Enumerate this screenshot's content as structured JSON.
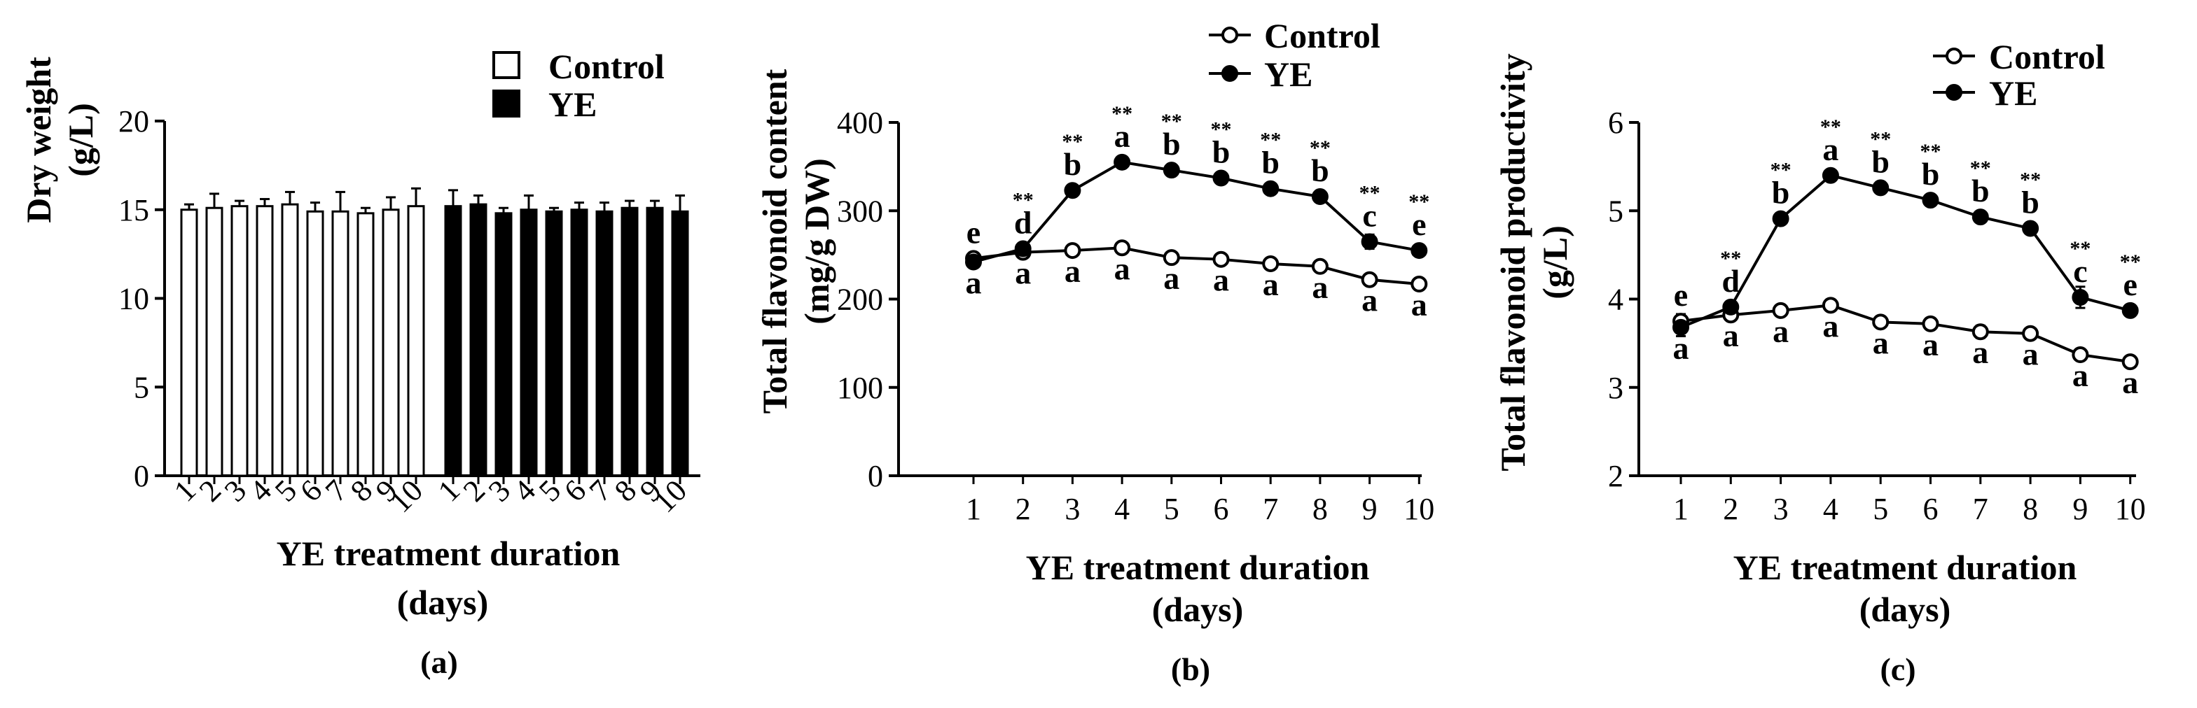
{
  "chart_data": [
    {
      "type": "bar",
      "panel_label": "(a)",
      "xlabel": "YE treatment duration",
      "xlabel_line2": "(days)",
      "ylabel": "Dry weight",
      "ylabel_line2": "(g/L)",
      "ylim": [
        0,
        20
      ],
      "yticks": [
        "0",
        "5",
        "10",
        "15",
        "20"
      ],
      "categories": [
        "1",
        "2",
        "3",
        "4",
        "5",
        "6",
        "7",
        "8",
        "9",
        "10"
      ],
      "legend_position": "top-right",
      "series": [
        {
          "name": "Control",
          "color": "#ffffff",
          "values": [
            15.0,
            15.1,
            15.2,
            15.2,
            15.3,
            14.9,
            14.9,
            14.8,
            15.0,
            15.2
          ],
          "errors": [
            0.3,
            0.8,
            0.3,
            0.4,
            0.7,
            0.5,
            1.1,
            0.3,
            0.7,
            1.0
          ]
        },
        {
          "name": "YE",
          "color": "#000000",
          "values": [
            15.2,
            15.3,
            14.8,
            15.0,
            14.9,
            15.0,
            14.9,
            15.1,
            15.1,
            14.9
          ],
          "errors": [
            0.9,
            0.5,
            0.3,
            0.8,
            0.2,
            0.4,
            0.5,
            0.4,
            0.4,
            0.9
          ]
        }
      ]
    },
    {
      "type": "line",
      "panel_label": "(b)",
      "xlabel": "YE treatment duration",
      "xlabel_line2": "(days)",
      "ylabel": "Total flavonoid content",
      "ylabel_line2": "(mg/g DW)",
      "ylim": [
        0,
        400
      ],
      "yticks": [
        "0",
        "100",
        "200",
        "300",
        "400"
      ],
      "x": [
        1,
        2,
        3,
        4,
        5,
        6,
        7,
        8,
        9,
        10
      ],
      "legend_position": "top",
      "series": [
        {
          "name": "Control",
          "marker": "open-circle",
          "values": [
            246,
            253,
            255,
            258,
            247,
            245,
            240,
            237,
            222,
            217
          ],
          "errors": [
            3,
            4,
            3,
            3,
            3,
            3,
            4,
            3,
            3,
            3
          ],
          "letters": [
            "a",
            "a",
            "a",
            "a",
            "a",
            "a",
            "a",
            "a",
            "a",
            "a"
          ]
        },
        {
          "name": "YE",
          "marker": "filled-circle",
          "values": [
            242,
            257,
            323,
            355,
            346,
            337,
            325,
            316,
            265,
            255
          ],
          "errors": [
            4,
            5,
            4,
            3,
            3,
            3,
            3,
            4,
            8,
            4
          ],
          "letters": [
            "e",
            "d",
            "b",
            "a",
            "b",
            "b",
            "b",
            "b",
            "c",
            "e"
          ],
          "significance": [
            "",
            "**",
            "**",
            "**",
            "**",
            "**",
            "**",
            "**",
            "**",
            "**"
          ]
        }
      ]
    },
    {
      "type": "line",
      "panel_label": "(c)",
      "xlabel": "YE treatment duration",
      "xlabel_line2": "(days)",
      "ylabel": "Total flavonoid productivity",
      "ylabel_line2": "(g/L)",
      "ylim": [
        2,
        6
      ],
      "yticks": [
        "2",
        "3",
        "4",
        "5",
        "6"
      ],
      "x": [
        1,
        2,
        3,
        4,
        5,
        6,
        7,
        8,
        9,
        10
      ],
      "legend_position": "top",
      "series": [
        {
          "name": "Control",
          "marker": "open-circle",
          "values": [
            3.75,
            3.82,
            3.87,
            3.93,
            3.74,
            3.72,
            3.63,
            3.61,
            3.37,
            3.29
          ],
          "errors": [
            0.08,
            0.05,
            0.05,
            0.05,
            0.04,
            0.04,
            0.07,
            0.04,
            0.04,
            0.04
          ],
          "letters": [
            "a",
            "a",
            "a",
            "a",
            "a",
            "a",
            "a",
            "a",
            "a",
            "a"
          ]
        },
        {
          "name": "YE",
          "marker": "filled-circle",
          "values": [
            3.68,
            3.91,
            4.91,
            5.4,
            5.26,
            5.12,
            4.93,
            4.8,
            4.02,
            3.87
          ],
          "errors": [
            0.1,
            0.06,
            0.05,
            0.04,
            0.04,
            0.04,
            0.04,
            0.05,
            0.12,
            0.06
          ],
          "letters": [
            "e",
            "d",
            "b",
            "a",
            "b",
            "b",
            "b",
            "b",
            "c",
            "e"
          ],
          "significance": [
            "",
            "**",
            "**",
            "**",
            "**",
            "**",
            "**",
            "**",
            "**",
            "**"
          ]
        }
      ]
    }
  ]
}
